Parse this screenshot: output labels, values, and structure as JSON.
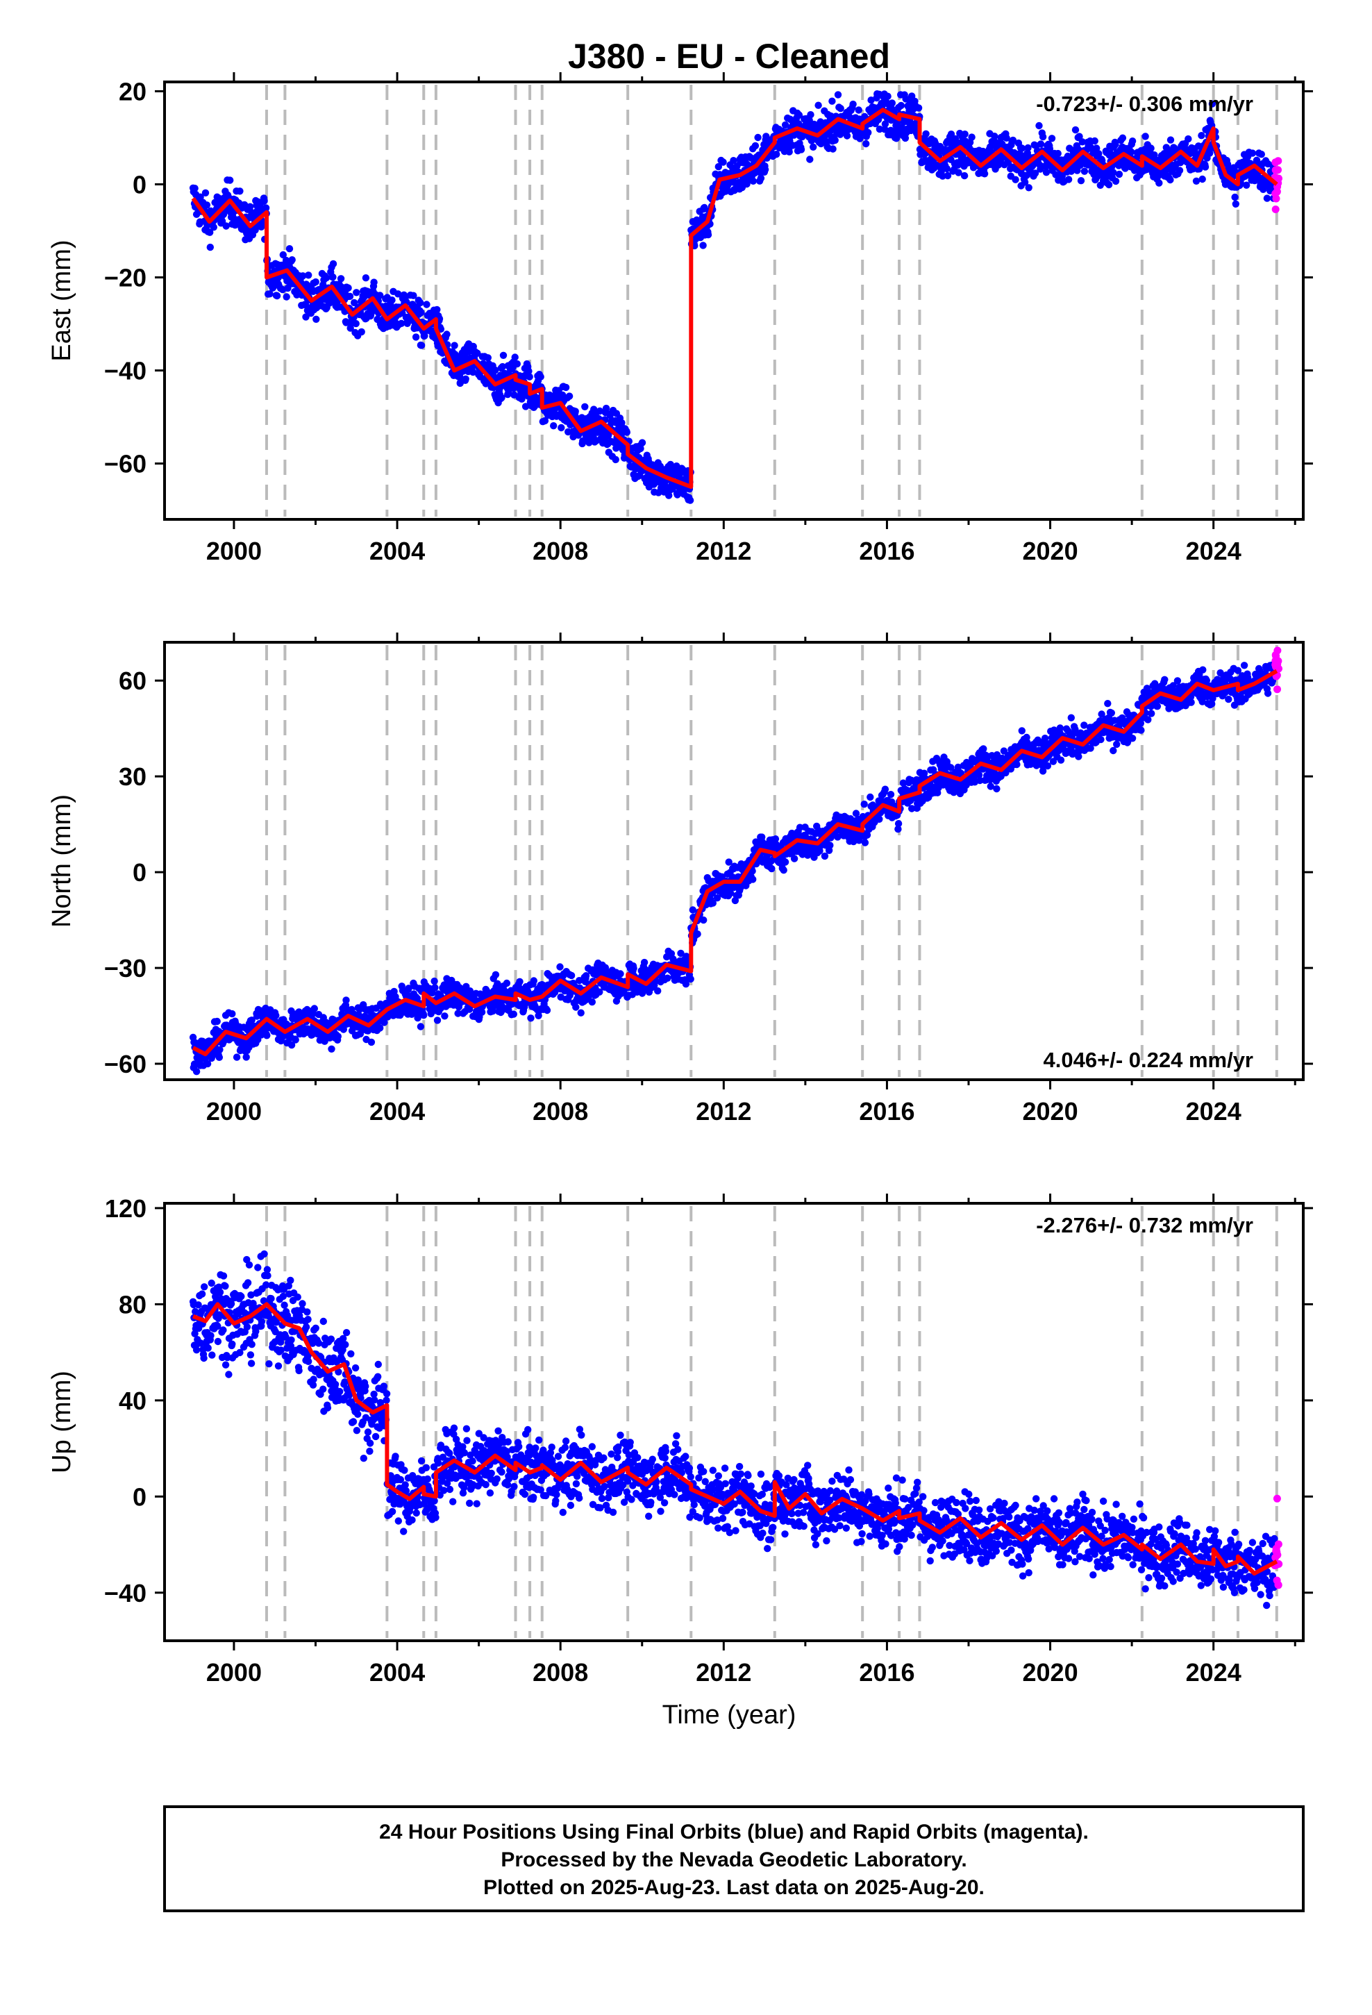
{
  "title": "J380  - EU - Cleaned",
  "xlabel": "Time (year)",
  "footer": {
    "lines": [
      "24 Hour Positions Using Final Orbits (blue) and Rapid Orbits (magenta).",
      "Processed by the Nevada Geodetic Laboratory.",
      "Plotted on 2025-Aug-23. Last data on 2025-Aug-20."
    ]
  },
  "colors": {
    "final_orbits": "#0000ff",
    "rapid_orbits": "#ff00ff",
    "model": "#ff0000",
    "event_lines": "#bbbbbb"
  },
  "chart_data": [
    {
      "type": "scatter",
      "component": "east",
      "ylabel": "East (mm)",
      "rate_label": "-0.723+/- 0.306 mm/yr",
      "rate_position": "top-right",
      "xlim": [
        1998.3,
        2026.2
      ],
      "ylim": [
        -72,
        22
      ],
      "x_ticks": [
        2000,
        2004,
        2008,
        2012,
        2016,
        2020,
        2024
      ],
      "y_ticks": [
        20,
        0,
        -20,
        -40,
        -60
      ],
      "event_lines": [
        2000.8,
        2001.25,
        2003.75,
        2004.65,
        2004.95,
        2006.9,
        2007.25,
        2007.55,
        2009.65,
        2011.2,
        2013.25,
        2015.4,
        2016.3,
        2016.8,
        2022.25,
        2024.0,
        2024.6,
        2025.55
      ],
      "model_segments": [
        {
          "x": [
            1999.0,
            1999.4,
            1999.9,
            2000.4,
            2000.8
          ],
          "y": [
            -3,
            -8,
            -3.5,
            -9,
            -6
          ]
        },
        {
          "x": [
            2000.8,
            2001.3,
            2001.9,
            2002.4,
            2002.9,
            2003.4,
            2003.75
          ],
          "y": [
            -20,
            -18.5,
            -25,
            -22,
            -28,
            -24.5,
            -29
          ]
        },
        {
          "x": [
            2003.75,
            2004.2,
            2004.65
          ],
          "y": [
            -29,
            -26,
            -31
          ]
        },
        {
          "x": [
            2004.65,
            2004.95
          ],
          "y": [
            -31,
            -29
          ]
        },
        {
          "x": [
            2004.95,
            2005.4,
            2005.9,
            2006.4,
            2006.9
          ],
          "y": [
            -31,
            -40,
            -38,
            -43,
            -41
          ]
        },
        {
          "x": [
            2006.9,
            2007.25
          ],
          "y": [
            -42,
            -43
          ]
        },
        {
          "x": [
            2007.25,
            2007.55
          ],
          "y": [
            -45,
            -44
          ]
        },
        {
          "x": [
            2007.55,
            2008.0,
            2008.5,
            2009.0,
            2009.65
          ],
          "y": [
            -48,
            -47,
            -53,
            -51,
            -56
          ]
        },
        {
          "x": [
            2009.65,
            2010.1,
            2010.6,
            2011.2
          ],
          "y": [
            -58,
            -61,
            -63,
            -65
          ]
        },
        {
          "x": [
            2011.2,
            2011.6,
            2011.9,
            2012.4,
            2012.8,
            2013.25
          ],
          "y": [
            -11,
            -8,
            1,
            2,
            4,
            9
          ]
        },
        {
          "x": [
            2013.25,
            2013.8,
            2014.3,
            2014.8,
            2015.4
          ],
          "y": [
            10,
            12,
            10.5,
            14,
            12
          ]
        },
        {
          "x": [
            2015.4,
            2015.9,
            2016.3
          ],
          "y": [
            13,
            16,
            14
          ]
        },
        {
          "x": [
            2016.3,
            2016.8
          ],
          "y": [
            15,
            14
          ]
        },
        {
          "x": [
            2016.8,
            2017.3,
            2017.8,
            2018.3,
            2018.8,
            2019.3,
            2019.8,
            2020.3,
            2020.8,
            2021.3,
            2021.8,
            2022.25
          ],
          "y": [
            9,
            5,
            8,
            4,
            7.5,
            3.5,
            7,
            3,
            7,
            3.5,
            6.5,
            4
          ]
        },
        {
          "x": [
            2022.25,
            2022.7,
            2023.2,
            2023.6,
            2024.0
          ],
          "y": [
            6,
            3.5,
            7,
            4,
            12
          ]
        },
        {
          "x": [
            2024.0,
            2024.3,
            2024.6
          ],
          "y": [
            9,
            2,
            0
          ]
        },
        {
          "x": [
            2024.6,
            2025.0,
            2025.55
          ],
          "y": [
            2,
            4,
            0
          ]
        }
      ]
    },
    {
      "type": "scatter",
      "component": "north",
      "ylabel": "North (mm)",
      "rate_label": "4.046+/- 0.224 mm/yr",
      "rate_position": "bottom-right",
      "xlim": [
        1998.3,
        2026.2
      ],
      "ylim": [
        -65,
        72
      ],
      "x_ticks": [
        2000,
        2004,
        2008,
        2012,
        2016,
        2020,
        2024
      ],
      "y_ticks": [
        60,
        30,
        0,
        -30,
        -60
      ],
      "event_lines": [
        2000.8,
        2001.25,
        2003.75,
        2004.65,
        2004.95,
        2006.9,
        2007.25,
        2007.55,
        2009.65,
        2011.2,
        2013.25,
        2015.4,
        2016.3,
        2016.8,
        2022.25,
        2024.0,
        2024.6,
        2025.55
      ],
      "model_segments": [
        {
          "x": [
            1999.0,
            1999.3,
            1999.8,
            2000.3,
            2000.8
          ],
          "y": [
            -55,
            -57,
            -50,
            -52,
            -46
          ]
        },
        {
          "x": [
            2000.8,
            2001.25
          ],
          "y": [
            -46,
            -50
          ]
        },
        {
          "x": [
            2001.25,
            2001.8,
            2002.3,
            2002.8,
            2003.3,
            2003.75
          ],
          "y": [
            -50,
            -46,
            -50,
            -45,
            -48,
            -43
          ]
        },
        {
          "x": [
            2003.75,
            2004.2,
            2004.65
          ],
          "y": [
            -43,
            -40,
            -42
          ]
        },
        {
          "x": [
            2004.65,
            2004.95
          ],
          "y": [
            -38,
            -41
          ]
        },
        {
          "x": [
            2004.95,
            2005.4,
            2005.9,
            2006.4,
            2006.9
          ],
          "y": [
            -41,
            -38,
            -42,
            -39,
            -40
          ]
        },
        {
          "x": [
            2006.9,
            2007.25,
            2007.55
          ],
          "y": [
            -38,
            -40,
            -39
          ]
        },
        {
          "x": [
            2007.55,
            2008.0,
            2008.5,
            2009.0,
            2009.65
          ],
          "y": [
            -39,
            -34,
            -38,
            -33,
            -36
          ]
        },
        {
          "x": [
            2009.65,
            2010.1,
            2010.6,
            2011.2
          ],
          "y": [
            -32,
            -35,
            -29,
            -31
          ]
        },
        {
          "x": [
            2011.2,
            2011.6,
            2012.0,
            2012.4,
            2012.9,
            2013.25
          ],
          "y": [
            -19,
            -6,
            -3,
            -3,
            7,
            6
          ]
        },
        {
          "x": [
            2013.25,
            2013.8,
            2014.3,
            2014.8,
            2015.4
          ],
          "y": [
            5,
            10,
            9,
            15,
            13
          ]
        },
        {
          "x": [
            2015.4,
            2015.9,
            2016.3
          ],
          "y": [
            15,
            21,
            19
          ]
        },
        {
          "x": [
            2016.3,
            2016.8
          ],
          "y": [
            23,
            25
          ]
        },
        {
          "x": [
            2016.8,
            2017.3,
            2017.8,
            2018.3,
            2018.8,
            2019.3,
            2019.8,
            2020.3,
            2020.8,
            2021.3,
            2021.8,
            2022.25
          ],
          "y": [
            27,
            31,
            29,
            34,
            32,
            38,
            36,
            42,
            40,
            46,
            44,
            50
          ]
        },
        {
          "x": [
            2022.25,
            2022.7,
            2023.2,
            2023.6,
            2024.0
          ],
          "y": [
            52,
            56,
            54,
            59,
            57
          ]
        },
        {
          "x": [
            2024.0,
            2024.6
          ],
          "y": [
            57,
            59
          ]
        },
        {
          "x": [
            2024.6,
            2025.0,
            2025.55
          ],
          "y": [
            57,
            59,
            63
          ]
        }
      ]
    },
    {
      "type": "scatter",
      "component": "up",
      "ylabel": "Up (mm)",
      "rate_label": "-2.276+/- 0.732 mm/yr",
      "rate_position": "top-right",
      "xlim": [
        1998.3,
        2026.2
      ],
      "ylim": [
        -60,
        122
      ],
      "x_ticks": [
        2000,
        2004,
        2008,
        2012,
        2016,
        2020,
        2024
      ],
      "y_ticks": [
        120,
        80,
        40,
        0,
        -40
      ],
      "event_lines": [
        2000.8,
        2001.25,
        2003.75,
        2004.65,
        2004.95,
        2006.9,
        2007.25,
        2007.55,
        2009.65,
        2011.2,
        2013.25,
        2015.4,
        2016.3,
        2016.8,
        2022.25,
        2024.0,
        2024.6,
        2025.55
      ],
      "model_segments": [
        {
          "x": [
            1999.0,
            1999.3,
            1999.6,
            2000.0,
            2000.4,
            2000.8
          ],
          "y": [
            75,
            73,
            80,
            72,
            75,
            80
          ]
        },
        {
          "x": [
            2000.8,
            2001.25
          ],
          "y": [
            80,
            72
          ]
        },
        {
          "x": [
            2001.25,
            2001.6,
            2001.9,
            2002.3,
            2002.7,
            2003.0,
            2003.4,
            2003.75
          ],
          "y": [
            72,
            70,
            60,
            52,
            55,
            40,
            35,
            38
          ]
        },
        {
          "x": [
            2003.75,
            2004.0,
            2004.3,
            2004.65
          ],
          "y": [
            5,
            2,
            -1,
            4
          ]
        },
        {
          "x": [
            2004.65,
            2004.95
          ],
          "y": [
            1,
            0
          ]
        },
        {
          "x": [
            2004.95,
            2005.4,
            2005.9,
            2006.4,
            2006.9
          ],
          "y": [
            10,
            15,
            10,
            17,
            11
          ]
        },
        {
          "x": [
            2006.9,
            2007.25,
            2007.55
          ],
          "y": [
            14,
            10,
            12
          ]
        },
        {
          "x": [
            2007.55,
            2008.0,
            2008.5,
            2009.0,
            2009.65
          ],
          "y": [
            13,
            7,
            14,
            6,
            12
          ]
        },
        {
          "x": [
            2009.65,
            2010.1,
            2010.6,
            2011.2
          ],
          "y": [
            10,
            5,
            12,
            5
          ]
        },
        {
          "x": [
            2011.2,
            2011.6,
            2012.0,
            2012.4,
            2012.9,
            2013.25
          ],
          "y": [
            3,
            0,
            -3,
            2,
            -6,
            -8
          ]
        },
        {
          "x": [
            2013.25,
            2013.6,
            2014.0,
            2014.4,
            2014.9,
            2015.4
          ],
          "y": [
            6,
            -5,
            1,
            -7,
            -1,
            -5
          ]
        },
        {
          "x": [
            2015.4,
            2015.9,
            2016.3
          ],
          "y": [
            -5,
            -10,
            -6
          ]
        },
        {
          "x": [
            2016.3,
            2016.8
          ],
          "y": [
            -9,
            -7
          ]
        },
        {
          "x": [
            2016.8,
            2017.3,
            2017.8,
            2018.3,
            2018.8,
            2019.3,
            2019.8,
            2020.3,
            2020.8,
            2021.3,
            2021.8,
            2022.25
          ],
          "y": [
            -10,
            -15,
            -9,
            -17,
            -11,
            -18,
            -12,
            -20,
            -13,
            -20,
            -16,
            -22
          ]
        },
        {
          "x": [
            2022.25,
            2022.7,
            2023.2,
            2023.6,
            2024.0
          ],
          "y": [
            -20,
            -26,
            -20,
            -27,
            -28
          ]
        },
        {
          "x": [
            2024.0,
            2024.3,
            2024.6
          ],
          "y": [
            -22,
            -29,
            -27
          ]
        },
        {
          "x": [
            2024.6,
            2025.0,
            2025.55
          ],
          "y": [
            -25,
            -32,
            -27
          ]
        }
      ]
    }
  ]
}
